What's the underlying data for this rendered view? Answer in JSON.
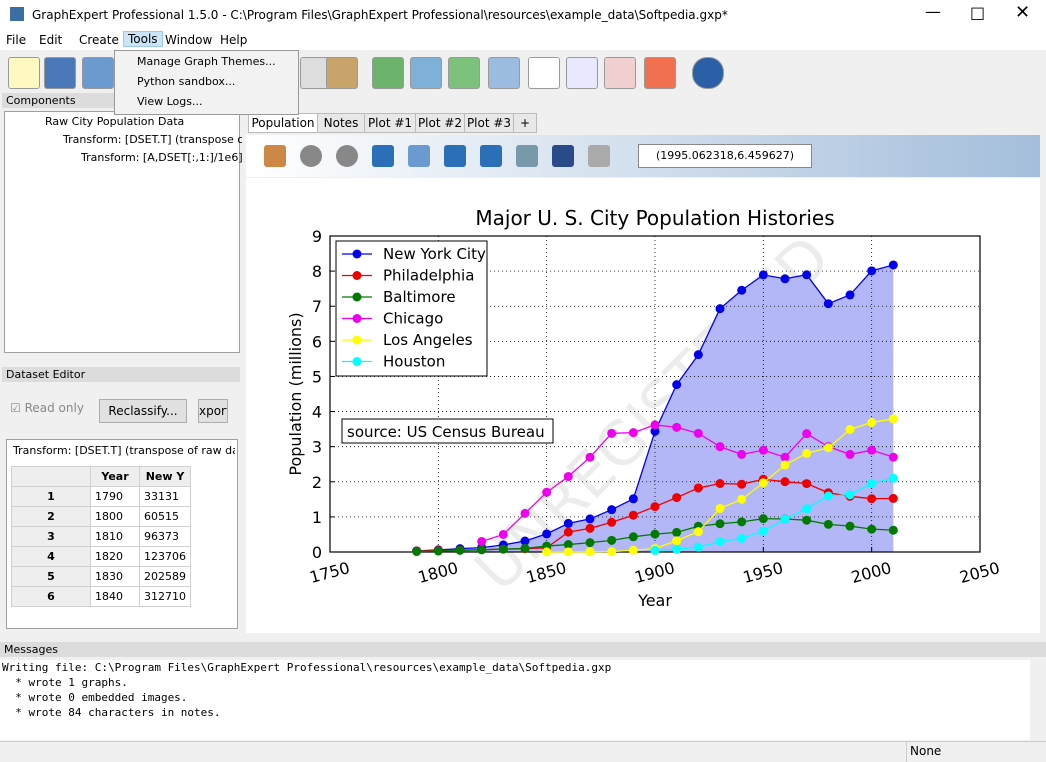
{
  "window": {
    "title": "GraphExpert Professional 1.5.0 - C:\\Program Files\\GraphExpert Professional\\resources\\example_data\\Softpedia.gxp*"
  },
  "menu": [
    "File",
    "Edit",
    "Create",
    "Tools",
    "Window",
    "Help"
  ],
  "tools_menu": [
    "Manage Graph Themes...",
    "Python sandbox...",
    "View Logs..."
  ],
  "components": {
    "title": "Components",
    "tree": [
      "Raw City Population Data",
      "Transform: [DSET.T] (transpose c",
      "Transform: [A,DSET[:,1:]/1e6]"
    ]
  },
  "dataset_editor": {
    "title": "Dataset Editor",
    "read_only": "Read only",
    "reclassify": "Reclassify...",
    "export": "xport",
    "caption": "Transform: [DSET.T] (transpose of raw dat",
    "table": {
      "columns": [
        "Year",
        "New Y"
      ],
      "rows": [
        [
          "1",
          "1790",
          "33131"
        ],
        [
          "2",
          "1800",
          "60515"
        ],
        [
          "3",
          "1810",
          "96373"
        ],
        [
          "4",
          "1820",
          "123706"
        ],
        [
          "5",
          "1830",
          "202589"
        ],
        [
          "6",
          "1840",
          "312710"
        ]
      ]
    }
  },
  "tabs": [
    "Population",
    "Notes",
    "Plot #1",
    "Plot #2",
    "Plot #3",
    "+"
  ],
  "coords": "(1995.062318,6.459627)",
  "messages": {
    "title": "Messages",
    "lines": [
      "Writing file: C:\\Program Files\\GraphExpert Professional\\resources\\example_data\\Softpedia.gxp",
      "  * wrote 1 graphs.",
      "  * wrote 0 embedded images.",
      "  * wrote 84 characters in notes."
    ]
  },
  "status": "None",
  "chart_data": {
    "type": "line",
    "title": "Major U. S. City Population Histories",
    "xlabel": "Year",
    "ylabel": "Population (millions)",
    "annotation": "source: US Census Bureau",
    "watermark": "UNREGISTERED",
    "grid": true,
    "legend": "upper left",
    "x": [
      1790,
      1800,
      1810,
      1820,
      1830,
      1840,
      1850,
      1860,
      1870,
      1880,
      1890,
      1900,
      1910,
      1920,
      1930,
      1940,
      1950,
      1960,
      1970,
      1980,
      1990,
      2000,
      2010
    ],
    "xlim": [
      1750,
      2050
    ],
    "xticks": [
      1750,
      1800,
      1850,
      1900,
      1950,
      2000,
      2050
    ],
    "ylim": [
      0,
      9
    ],
    "yticks": [
      0,
      1,
      2,
      3,
      4,
      5,
      6,
      7,
      8,
      9
    ],
    "series": [
      {
        "name": "New York City",
        "color": "#0000ee",
        "fill_color": "#b3b6f7",
        "values": [
          0.033,
          0.06,
          0.096,
          0.124,
          0.203,
          0.313,
          0.516,
          0.814,
          0.942,
          1.206,
          1.515,
          3.437,
          4.767,
          5.62,
          6.93,
          7.455,
          7.892,
          7.782,
          7.896,
          7.072,
          7.323,
          8.008,
          8.175
        ]
      },
      {
        "name": "Philadelphia",
        "color": "#ee0000",
        "values": [
          0.028,
          0.041,
          0.054,
          0.064,
          0.081,
          0.094,
          0.121,
          0.566,
          0.674,
          0.847,
          1.047,
          1.294,
          1.549,
          1.824,
          1.951,
          1.931,
          2.072,
          2.003,
          1.949,
          1.688,
          1.586,
          1.518,
          1.526
        ]
      },
      {
        "name": "Baltimore",
        "color": "#007a00",
        "values": [
          0.014,
          0.027,
          0.047,
          0.063,
          0.081,
          0.102,
          0.169,
          0.212,
          0.267,
          0.332,
          0.434,
          0.509,
          0.558,
          0.734,
          0.805,
          0.859,
          0.95,
          0.939,
          0.906,
          0.787,
          0.736,
          0.651,
          0.621
        ]
      },
      {
        "name": "Chicago",
        "color": "#ee00ee",
        "values": [
          null,
          null,
          null,
          0.3,
          0.5,
          1.1,
          1.7,
          2.15,
          2.7,
          3.38,
          3.4,
          3.62,
          3.55,
          3.38,
          3.0,
          2.78,
          2.9,
          2.7,
          3.37,
          3.0,
          2.78,
          2.9,
          2.7
        ]
      },
      {
        "name": "Los Angeles",
        "color": "#ffff00",
        "values": [
          null,
          null,
          null,
          null,
          null,
          null,
          0.002,
          0.004,
          0.006,
          0.011,
          0.05,
          0.1,
          0.32,
          0.58,
          1.24,
          1.5,
          1.97,
          2.48,
          2.81,
          2.97,
          3.49,
          3.69,
          3.79
        ]
      },
      {
        "name": "Houston",
        "color": "#00ffff",
        "values": [
          null,
          null,
          null,
          null,
          null,
          null,
          null,
          null,
          null,
          null,
          null,
          0.045,
          0.079,
          0.138,
          0.292,
          0.385,
          0.596,
          0.938,
          1.233,
          1.595,
          1.631,
          1.954,
          2.099
        ]
      }
    ]
  }
}
